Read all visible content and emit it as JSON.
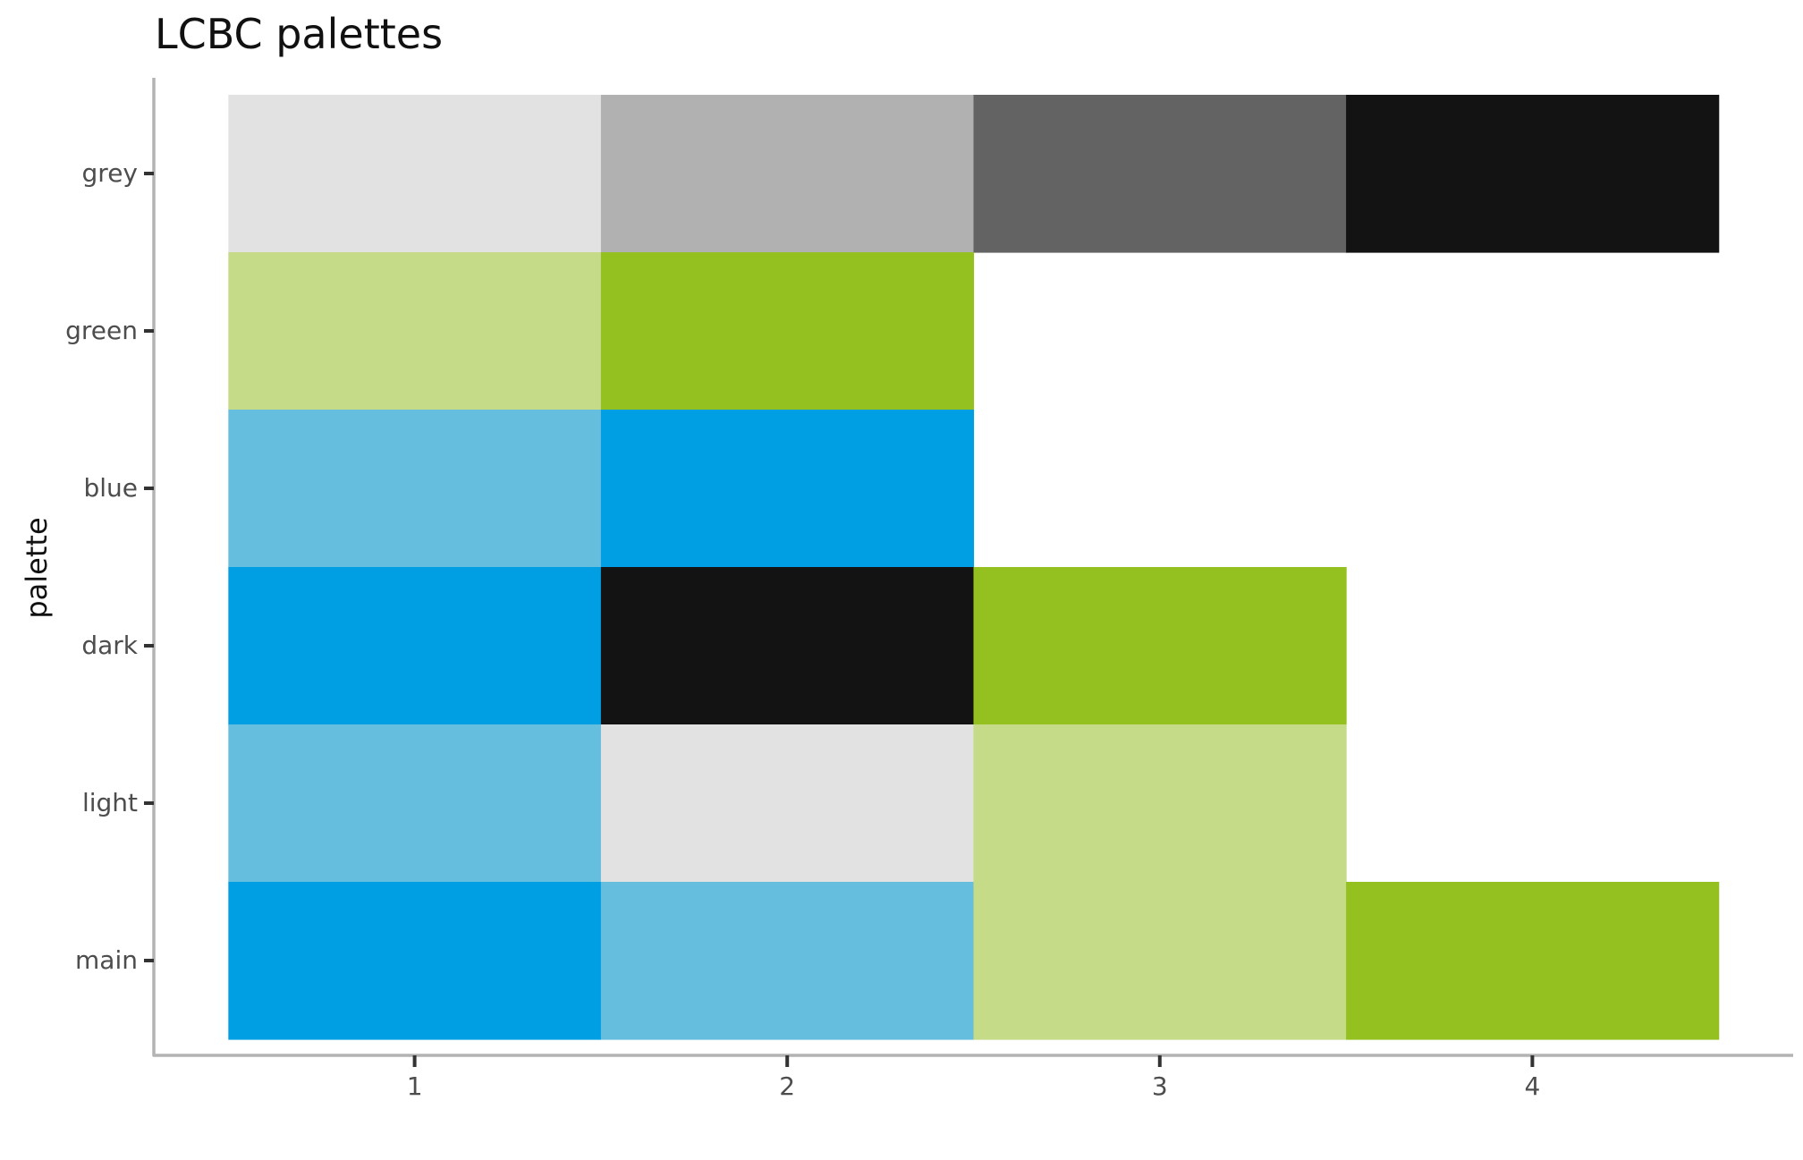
{
  "chart_data": {
    "type": "heatmap",
    "title": "LCBC palettes",
    "xlabel": "",
    "ylabel": "palette",
    "x_categories": [
      "1",
      "2",
      "3",
      "4"
    ],
    "y_categories": [
      "grey",
      "green",
      "blue",
      "dark",
      "light",
      "main"
    ],
    "xlim": [
      0.3,
      4.7
    ],
    "grid": false,
    "legend": "none",
    "cells": [
      {
        "palette": "grey",
        "x": 1,
        "color": "#e2e2e2"
      },
      {
        "palette": "grey",
        "x": 2,
        "color": "#b1b1b1"
      },
      {
        "palette": "grey",
        "x": 3,
        "color": "#636363"
      },
      {
        "palette": "grey",
        "x": 4,
        "color": "#131313"
      },
      {
        "palette": "green",
        "x": 1,
        "color": "#c5db87"
      },
      {
        "palette": "green",
        "x": 2,
        "color": "#95c120"
      },
      {
        "palette": "blue",
        "x": 1,
        "color": "#65bedd"
      },
      {
        "palette": "blue",
        "x": 2,
        "color": "#009fe3"
      },
      {
        "palette": "dark",
        "x": 1,
        "color": "#009fe3"
      },
      {
        "palette": "dark",
        "x": 2,
        "color": "#131313"
      },
      {
        "palette": "dark",
        "x": 3,
        "color": "#95c120"
      },
      {
        "palette": "light",
        "x": 1,
        "color": "#65bedd"
      },
      {
        "palette": "light",
        "x": 2,
        "color": "#e2e2e2"
      },
      {
        "palette": "light",
        "x": 3,
        "color": "#c5db87"
      },
      {
        "palette": "main",
        "x": 1,
        "color": "#009fe3"
      },
      {
        "palette": "main",
        "x": 2,
        "color": "#65bedd"
      },
      {
        "palette": "main",
        "x": 3,
        "color": "#c5db87"
      },
      {
        "palette": "main",
        "x": 4,
        "color": "#95c120"
      }
    ]
  }
}
